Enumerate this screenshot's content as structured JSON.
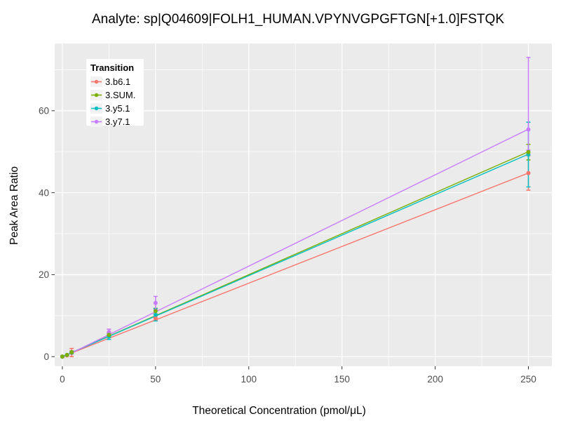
{
  "chart_data": {
    "type": "line",
    "subtype": "scatter-line-errorbar",
    "title": "Analyte: sp|Q04609|FOLH1_HUMAN.VPYNVGPGFTGN[+1.0]FSTQK",
    "xlabel": "Theoretical Concentration (pmol/μL)",
    "ylabel": "Peak Area Ratio",
    "xlim": [
      -4.1,
      262.6
    ],
    "ylim": [
      -2.35,
      76.4
    ],
    "x_ticks": [
      0,
      50,
      100,
      150,
      200,
      250
    ],
    "y_ticks": [
      0,
      20,
      40,
      60
    ],
    "x_minor": [
      25,
      75,
      125,
      175,
      225
    ],
    "y_minor": [
      10,
      30,
      50,
      70
    ],
    "grid": true,
    "legend": {
      "title": "Transition",
      "position": "top-left-inside"
    },
    "colors": {
      "panel_bg": "#EBEBEB",
      "grid": "#FFFFFF",
      "tick": "#333333",
      "tick_label": "#4D4D4D",
      "title_text": "#000000",
      "legend_bg": "#FFFFFF",
      "legend_key_bg": "#F2F2F2"
    },
    "series": [
      {
        "name": "3.b6.1",
        "color": "#F8766D",
        "x": [
          0,
          2.5,
          5,
          25,
          50,
          250
        ],
        "y": [
          0,
          0.3,
          0.9,
          5.4,
          9.4,
          44.8
        ],
        "lo": [
          0,
          0.2,
          0.0,
          4.2,
          8.9,
          40.6
        ],
        "hi": [
          0,
          0.4,
          2.0,
          6.7,
          9.9,
          49.0
        ],
        "fit": [
          [
            0,
            0
          ],
          [
            250,
            44.8
          ]
        ]
      },
      {
        "name": "3.SUM.",
        "color": "#7CAE00",
        "x": [
          0,
          2.5,
          5,
          25,
          50,
          250
        ],
        "y": [
          0,
          0.4,
          1.1,
          5.3,
          11.1,
          49.9
        ],
        "lo": [
          0,
          0.3,
          0.8,
          4.9,
          10.4,
          48.0
        ],
        "hi": [
          0,
          0.5,
          1.4,
          5.7,
          11.8,
          51.8
        ],
        "fit": [
          [
            0,
            0
          ],
          [
            250,
            50.0
          ]
        ]
      },
      {
        "name": "3.y5.1",
        "color": "#00BFC4",
        "x": [
          0,
          2.5,
          5,
          25,
          50,
          250
        ],
        "y": [
          0,
          0.4,
          1.0,
          4.9,
          10.2,
          49.3
        ],
        "lo": [
          0,
          0.3,
          0.7,
          4.2,
          8.7,
          41.4
        ],
        "hi": [
          0,
          0.5,
          1.3,
          5.6,
          11.7,
          57.2
        ],
        "fit": [
          [
            0,
            0
          ],
          [
            250,
            49.4
          ]
        ]
      },
      {
        "name": "3.y7.1",
        "color": "#C77CFF",
        "x": [
          0,
          2.5,
          5,
          25,
          50,
          250
        ],
        "y": [
          0,
          0.4,
          1.1,
          6.0,
          13.1,
          55.4
        ],
        "lo": [
          0,
          0.3,
          0.8,
          5.3,
          11.5,
          50.4
        ],
        "hi": [
          0,
          0.5,
          1.4,
          6.7,
          14.7,
          73.0
        ],
        "fit": [
          [
            0,
            -0.2
          ],
          [
            250,
            55.5
          ]
        ]
      }
    ]
  }
}
